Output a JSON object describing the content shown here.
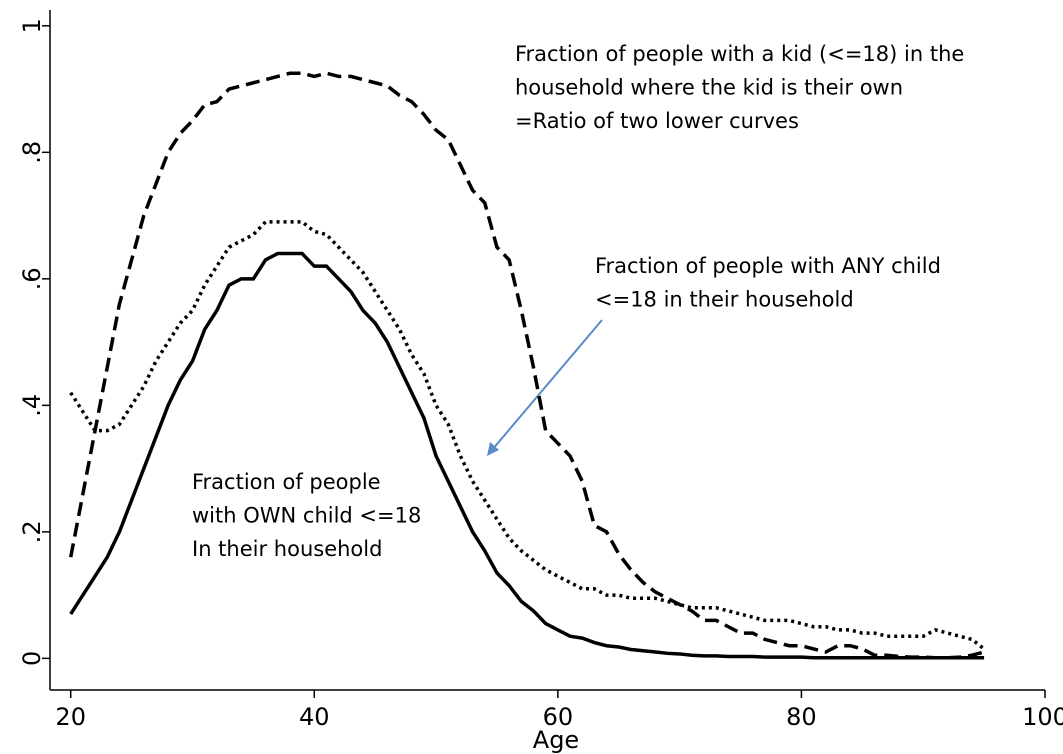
{
  "chart_data": {
    "type": "line",
    "xlabel": "Age",
    "xlim": [
      18.3,
      100
    ],
    "xticks": [
      20,
      40,
      60,
      80,
      100
    ],
    "ylim": [
      -0.05,
      1.025
    ],
    "yticks": [
      0,
      {
        "value": 0.2,
        "label": ".2"
      },
      {
        "value": 0.4,
        "label": ".4"
      },
      {
        "value": 0.6,
        "label": ".6"
      },
      {
        "value": 0.8,
        "label": ".8"
      },
      1
    ],
    "grid": false,
    "x": [
      20,
      21,
      22,
      23,
      24,
      25,
      26,
      27,
      28,
      29,
      30,
      31,
      32,
      33,
      34,
      35,
      36,
      37,
      38,
      39,
      40,
      41,
      42,
      43,
      44,
      45,
      46,
      47,
      48,
      49,
      50,
      51,
      52,
      53,
      54,
      55,
      56,
      57,
      58,
      59,
      60,
      61,
      62,
      63,
      64,
      65,
      66,
      67,
      68,
      69,
      70,
      71,
      72,
      73,
      74,
      75,
      76,
      77,
      78,
      79,
      80,
      81,
      82,
      83,
      84,
      85,
      86,
      87,
      88,
      89,
      90,
      91,
      92,
      93,
      94,
      95
    ],
    "series": [
      {
        "color": "#000000",
        "style": "dashed",
        "values": [
          0.16,
          0.26,
          0.36,
          0.46,
          0.56,
          0.63,
          0.7,
          0.75,
          0.8,
          0.83,
          0.85,
          0.875,
          0.88,
          0.9,
          0.905,
          0.91,
          0.915,
          0.92,
          0.925,
          0.925,
          0.92,
          0.925,
          0.92,
          0.92,
          0.915,
          0.91,
          0.905,
          0.89,
          0.88,
          0.86,
          0.835,
          0.82,
          0.78,
          0.74,
          0.72,
          0.65,
          0.63,
          0.55,
          0.46,
          0.36,
          0.34,
          0.32,
          0.28,
          0.21,
          0.2,
          0.165,
          0.14,
          0.12,
          0.105,
          0.095,
          0.085,
          0.075,
          0.06,
          0.06,
          0.05,
          0.04,
          0.04,
          0.03,
          0.025,
          0.02,
          0.02,
          0.015,
          0.01,
          0.02,
          0.02,
          0.015,
          0.005,
          0.005,
          0.003,
          0.002,
          0.002,
          0.001,
          0.001,
          0.002,
          0.005,
          0.01
        ]
      },
      {
        "color": "#000000",
        "style": "dotted",
        "values": [
          0.42,
          0.39,
          0.36,
          0.36,
          0.37,
          0.4,
          0.43,
          0.47,
          0.5,
          0.53,
          0.55,
          0.59,
          0.62,
          0.65,
          0.66,
          0.67,
          0.69,
          0.69,
          0.69,
          0.69,
          0.675,
          0.67,
          0.65,
          0.63,
          0.61,
          0.58,
          0.55,
          0.52,
          0.48,
          0.45,
          0.4,
          0.37,
          0.32,
          0.28,
          0.25,
          0.22,
          0.19,
          0.17,
          0.155,
          0.14,
          0.13,
          0.12,
          0.11,
          0.11,
          0.1,
          0.1,
          0.095,
          0.095,
          0.095,
          0.09,
          0.085,
          0.08,
          0.08,
          0.08,
          0.075,
          0.07,
          0.065,
          0.06,
          0.06,
          0.06,
          0.055,
          0.05,
          0.05,
          0.045,
          0.045,
          0.04,
          0.04,
          0.035,
          0.035,
          0.035,
          0.035,
          0.045,
          0.04,
          0.035,
          0.03,
          0.015
        ]
      },
      {
        "color": "#000000",
        "style": "solid",
        "values": [
          0.07,
          0.1,
          0.13,
          0.16,
          0.2,
          0.25,
          0.3,
          0.35,
          0.4,
          0.44,
          0.47,
          0.52,
          0.55,
          0.59,
          0.6,
          0.6,
          0.63,
          0.64,
          0.64,
          0.64,
          0.62,
          0.62,
          0.6,
          0.58,
          0.55,
          0.53,
          0.5,
          0.46,
          0.42,
          0.38,
          0.32,
          0.28,
          0.24,
          0.2,
          0.17,
          0.135,
          0.115,
          0.09,
          0.075,
          0.055,
          0.045,
          0.035,
          0.032,
          0.025,
          0.02,
          0.018,
          0.014,
          0.012,
          0.01,
          0.008,
          0.007,
          0.005,
          0.004,
          0.004,
          0.003,
          0.003,
          0.003,
          0.002,
          0.002,
          0.002,
          0.002,
          0.001,
          0.001,
          0.001,
          0.001,
          0.001,
          0.001,
          0.001,
          0.001,
          0.001,
          0.001,
          0.001,
          0.001,
          0.001,
          0.001,
          0.001
        ]
      }
    ],
    "annotations": [
      {
        "lines": [
          "Fraction of  people with a kid (<=18) in the",
          "household where the kid is their own",
          "=Ratio of two lower curves"
        ]
      },
      {
        "lines": [
          "Fraction of people with ANY child",
          "<=18 in their household"
        ]
      },
      {
        "lines": [
          "Fraction of people",
          "with OWN child <=18",
          "In their household"
        ]
      }
    ]
  }
}
